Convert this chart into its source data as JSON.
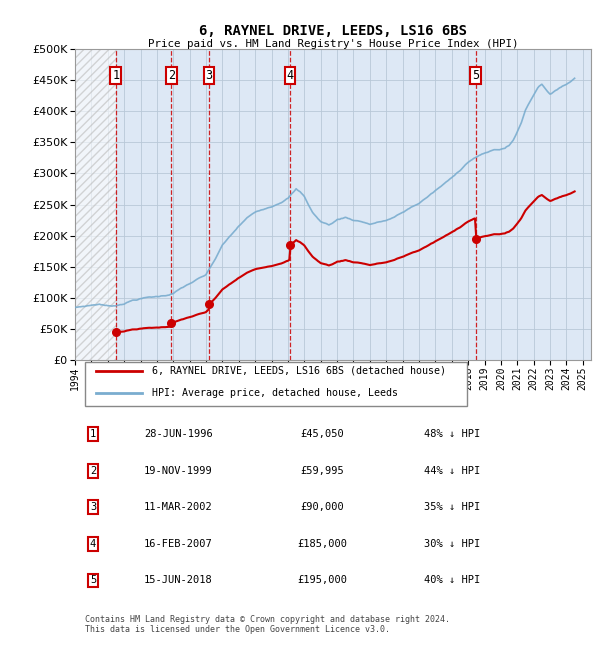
{
  "title": "6, RAYNEL DRIVE, LEEDS, LS16 6BS",
  "subtitle": "Price paid vs. HM Land Registry's House Price Index (HPI)",
  "ylim": [
    0,
    500000
  ],
  "yticks": [
    0,
    50000,
    100000,
    150000,
    200000,
    250000,
    300000,
    350000,
    400000,
    450000,
    500000
  ],
  "xlim_start": 1994.0,
  "xlim_end": 2025.5,
  "xticks": [
    1994,
    1995,
    1996,
    1997,
    1998,
    1999,
    2000,
    2001,
    2002,
    2003,
    2004,
    2005,
    2006,
    2007,
    2008,
    2009,
    2010,
    2011,
    2012,
    2013,
    2014,
    2015,
    2016,
    2017,
    2018,
    2019,
    2020,
    2021,
    2022,
    2023,
    2024,
    2025
  ],
  "sale_dates": [
    1996.486,
    1999.885,
    2002.192,
    2007.123,
    2018.458
  ],
  "sale_prices": [
    45050,
    59995,
    90000,
    185000,
    195000
  ],
  "sale_labels": [
    "1",
    "2",
    "3",
    "4",
    "5"
  ],
  "hpi_anchors_years": [
    1994.0,
    1994.5,
    1995.0,
    1995.5,
    1996.0,
    1996.5,
    1997.0,
    1997.5,
    1998.0,
    1998.5,
    1999.0,
    1999.5,
    2000.0,
    2000.5,
    2001.0,
    2001.5,
    2002.0,
    2002.5,
    2003.0,
    2003.5,
    2004.0,
    2004.5,
    2005.0,
    2005.5,
    2006.0,
    2006.5,
    2007.0,
    2007.25,
    2007.5,
    2007.75,
    2008.0,
    2008.25,
    2008.5,
    2008.75,
    2009.0,
    2009.25,
    2009.5,
    2009.75,
    2010.0,
    2010.5,
    2011.0,
    2011.5,
    2012.0,
    2012.5,
    2013.0,
    2013.5,
    2014.0,
    2014.5,
    2015.0,
    2015.5,
    2016.0,
    2016.5,
    2017.0,
    2017.5,
    2018.0,
    2018.5,
    2019.0,
    2019.5,
    2020.0,
    2020.25,
    2020.5,
    2020.75,
    2021.0,
    2021.25,
    2021.5,
    2021.75,
    2022.0,
    2022.25,
    2022.5,
    2022.75,
    2023.0,
    2023.25,
    2023.5,
    2023.75,
    2024.0,
    2024.25,
    2024.5
  ],
  "hpi_anchors_vals": [
    85000,
    87000,
    89000,
    91000,
    88000,
    89000,
    93000,
    98000,
    101000,
    103000,
    104000,
    106000,
    110000,
    118000,
    125000,
    132000,
    138000,
    160000,
    185000,
    200000,
    215000,
    228000,
    237000,
    243000,
    248000,
    255000,
    263000,
    270000,
    277000,
    272000,
    265000,
    252000,
    240000,
    232000,
    225000,
    222000,
    220000,
    223000,
    228000,
    232000,
    228000,
    226000,
    222000,
    225000,
    228000,
    233000,
    240000,
    248000,
    255000,
    265000,
    275000,
    285000,
    295000,
    308000,
    322000,
    330000,
    335000,
    340000,
    342000,
    344000,
    348000,
    356000,
    370000,
    385000,
    405000,
    418000,
    430000,
    442000,
    448000,
    440000,
    432000,
    435000,
    440000,
    445000,
    448000,
    452000,
    458000
  ],
  "legend_entries": [
    {
      "label": "6, RAYNEL DRIVE, LEEDS, LS16 6BS (detached house)",
      "color": "#cc0000",
      "lw": 1.5
    },
    {
      "label": "HPI: Average price, detached house, Leeds",
      "color": "#7aadcf",
      "lw": 1.2
    }
  ],
  "table_rows": [
    {
      "num": "1",
      "date": "28-JUN-1996",
      "price": "£45,050",
      "pct": "48% ↓ HPI"
    },
    {
      "num": "2",
      "date": "19-NOV-1999",
      "price": "£59,995",
      "pct": "44% ↓ HPI"
    },
    {
      "num": "3",
      "date": "11-MAR-2002",
      "price": "£90,000",
      "pct": "35% ↓ HPI"
    },
    {
      "num": "4",
      "date": "16-FEB-2007",
      "price": "£185,000",
      "pct": "30% ↓ HPI"
    },
    {
      "num": "5",
      "date": "15-JUN-2018",
      "price": "£195,000",
      "pct": "40% ↓ HPI"
    }
  ],
  "footer": "Contains HM Land Registry data © Crown copyright and database right 2024.\nThis data is licensed under the Open Government Licence v3.0.",
  "bg_color": "#dde8f5",
  "grid_color": "#b8c8d8",
  "sale_color": "#cc0000",
  "dashed_line_color": "#cc0000",
  "box_color": "#cc0000"
}
